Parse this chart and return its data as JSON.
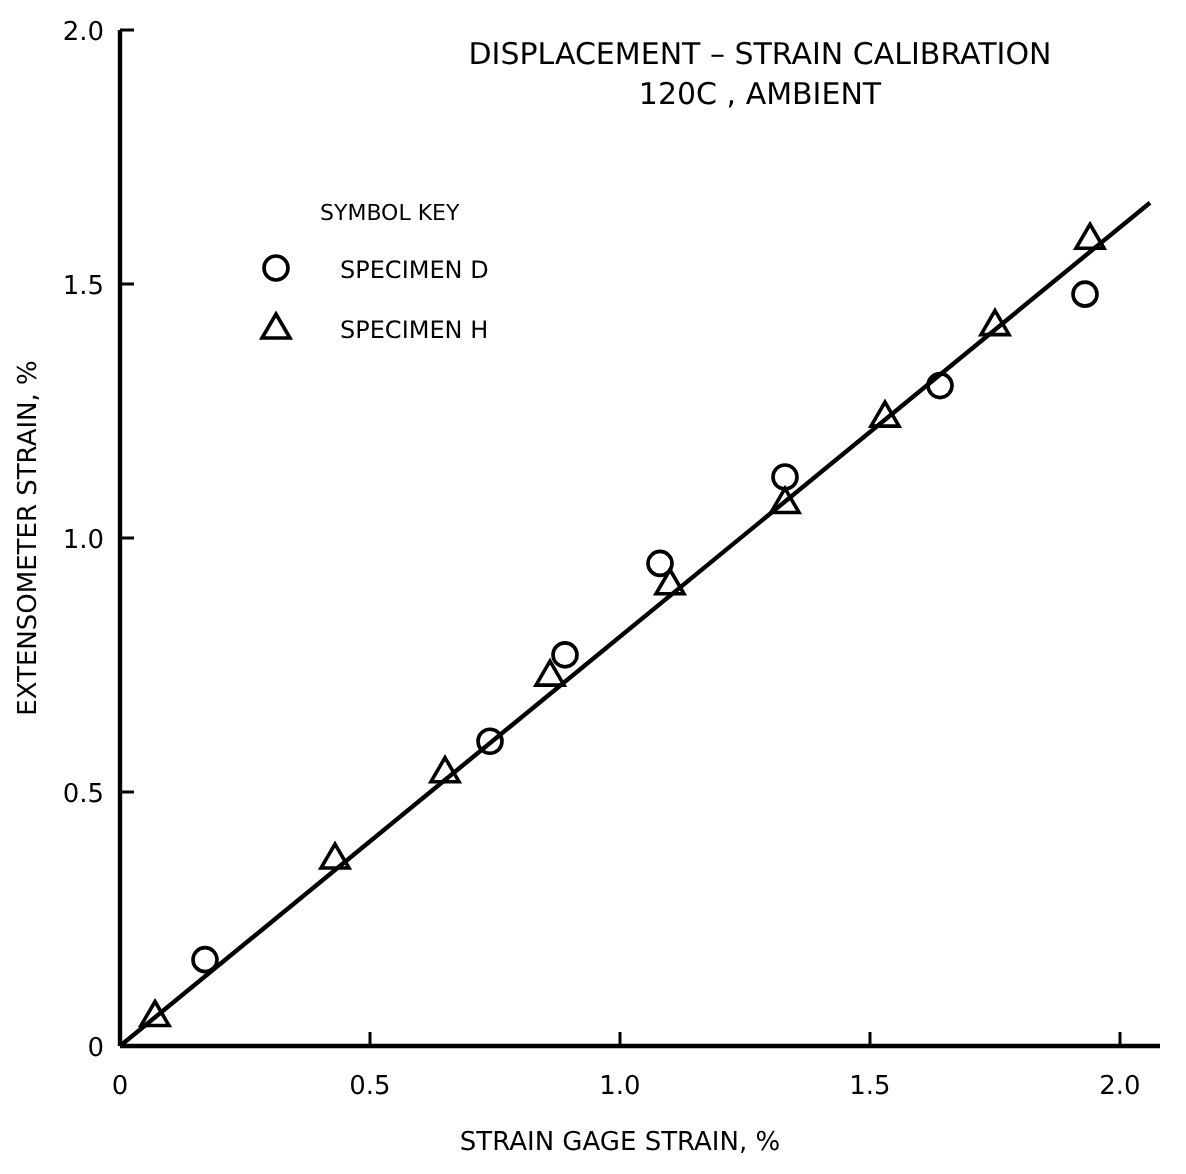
{
  "chart_data": {
    "type": "scatter",
    "title": "DISPLACEMENT – STRAIN CALIBRATION",
    "subtitle": "120C , AMBIENT",
    "xlabel": "STRAIN GAGE STRAIN, %",
    "ylabel": "EXTENSOMETER STRAIN, %",
    "legend_title": "SYMBOL KEY",
    "legend": "top left",
    "xlim": [
      0,
      2.08
    ],
    "ylim": [
      0,
      2
    ],
    "xticks": [
      {
        "value": 0,
        "label": "0"
      },
      {
        "value": 0.5,
        "label": "0.5"
      },
      {
        "value": 1,
        "label": "1.0"
      },
      {
        "value": 1.5,
        "label": "1.5"
      },
      {
        "value": 2,
        "label": "2.0"
      }
    ],
    "yticks": [
      {
        "value": 0,
        "label": "0"
      },
      {
        "value": 0.5,
        "label": "0.5"
      },
      {
        "value": 1,
        "label": "1.0"
      },
      {
        "value": 1.5,
        "label": "1.5"
      },
      {
        "value": 2,
        "label": "2.0"
      }
    ],
    "grid": false,
    "series": [
      {
        "name": "SPECIMEN D",
        "color": "#000000",
        "marker": "circle",
        "x": [
          0.17,
          0.74,
          0.89,
          1.08,
          1.33,
          1.64,
          1.93
        ],
        "values": [
          0.17,
          0.6,
          0.77,
          0.95,
          1.12,
          1.3,
          1.48
        ]
      },
      {
        "name": "SPECIMEN H",
        "color": "#000000",
        "marker": "triangle",
        "x": [
          0.07,
          0.43,
          0.65,
          0.86,
          1.1,
          1.33,
          1.53,
          1.75,
          1.94
        ],
        "values": [
          0.06,
          0.37,
          0.54,
          0.73,
          0.91,
          1.07,
          1.24,
          1.42,
          1.59
        ]
      },
      {
        "type": "line",
        "color": "#000000",
        "marker": "none",
        "line_style": "solid",
        "x": [
          0,
          2.06
        ],
        "values": [
          0,
          1.66
        ]
      }
    ]
  }
}
